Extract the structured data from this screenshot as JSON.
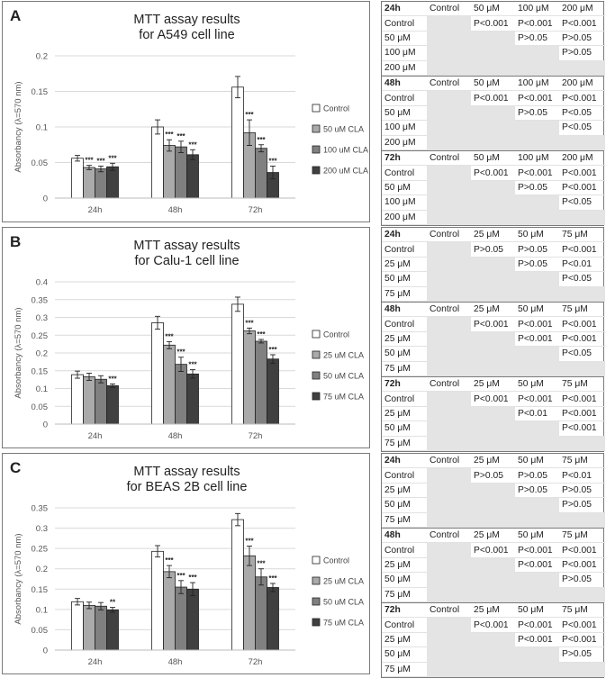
{
  "panels": [
    {
      "letter": "A",
      "title": [
        "MTT assay results",
        "for A549 cell line"
      ],
      "chart_data": {
        "type": "bar",
        "ylabel": "Absorbancy (λ=570 nm)",
        "ylim": [
          0,
          0.2
        ],
        "yticks": [
          "0",
          "0.05",
          "0.1",
          "0.15",
          "0.2"
        ],
        "ytick_values": [
          0,
          0.05,
          0.1,
          0.15,
          0.2
        ],
        "categories": [
          "24h",
          "48h",
          "72h"
        ],
        "colors": [
          "#ffffff",
          "#aaaaaa",
          "#808080",
          "#404040"
        ],
        "series": [
          {
            "name": "Control",
            "values": [
              0.056,
              0.1,
              0.156
            ],
            "errors": [
              0.004,
              0.01,
              0.015
            ],
            "sig": [
              "",
              "",
              ""
            ]
          },
          {
            "name": "50 uM CLA",
            "values": [
              0.043,
              0.074,
              0.092
            ],
            "errors": [
              0.003,
              0.008,
              0.018
            ],
            "sig": [
              "***",
              "***",
              "***"
            ]
          },
          {
            "name": "100 uM CLA",
            "values": [
              0.041,
              0.072,
              0.07
            ],
            "errors": [
              0.004,
              0.008,
              0.005
            ],
            "sig": [
              "***",
              "***",
              "***"
            ]
          },
          {
            "name": "200 uM CLA",
            "values": [
              0.044,
              0.061,
              0.036
            ],
            "errors": [
              0.005,
              0.007,
              0.009
            ],
            "sig": [
              "***",
              "***",
              "***"
            ]
          }
        ]
      }
    },
    {
      "letter": "B",
      "title": [
        "MTT assay results",
        "for Calu-1 cell line"
      ],
      "chart_data": {
        "type": "bar",
        "ylabel": "Absorbancy (λ=570 nm)",
        "ylim": [
          0,
          0.4
        ],
        "yticks": [
          "0",
          "0.05",
          "0.1",
          "0.15",
          "0.2",
          "0.25",
          "0.3",
          "0.35",
          "0.4"
        ],
        "ytick_values": [
          0,
          0.05,
          0.1,
          0.15,
          0.2,
          0.25,
          0.3,
          0.35,
          0.4
        ],
        "categories": [
          "24h",
          "48h",
          "72h"
        ],
        "colors": [
          "#ffffff",
          "#aaaaaa",
          "#808080",
          "#404040"
        ],
        "series": [
          {
            "name": "Control",
            "values": [
              0.139,
              0.285,
              0.337
            ],
            "errors": [
              0.01,
              0.018,
              0.02
            ],
            "sig": [
              "",
              "",
              ""
            ]
          },
          {
            "name": "25 uM CLA",
            "values": [
              0.133,
              0.222,
              0.262
            ],
            "errors": [
              0.01,
              0.01,
              0.008
            ],
            "sig": [
              "",
              "***",
              "***"
            ]
          },
          {
            "name": "50 uM CLA",
            "values": [
              0.126,
              0.168,
              0.233
            ],
            "errors": [
              0.01,
              0.02,
              0.005
            ],
            "sig": [
              "",
              "***",
              "***"
            ]
          },
          {
            "name": "75 uM CLA",
            "values": [
              0.108,
              0.141,
              0.183
            ],
            "errors": [
              0.005,
              0.012,
              0.012
            ],
            "sig": [
              "***",
              "***",
              "***"
            ]
          }
        ]
      }
    },
    {
      "letter": "C",
      "title": [
        "MTT assay results",
        "for BEAS 2B cell line"
      ],
      "chart_data": {
        "type": "bar",
        "ylabel": "Absorbancy (λ=570 nm)",
        "ylim": [
          0,
          0.35
        ],
        "yticks": [
          "0",
          "0.05",
          "0.1",
          "0.15",
          "0.2",
          "0.25",
          "0.3",
          "0.35"
        ],
        "ytick_values": [
          0,
          0.05,
          0.1,
          0.15,
          0.2,
          0.25,
          0.3,
          0.35
        ],
        "categories": [
          "24h",
          "48h",
          "72h"
        ],
        "colors": [
          "#ffffff",
          "#aaaaaa",
          "#808080",
          "#404040"
        ],
        "series": [
          {
            "name": "Control",
            "values": [
              0.119,
              0.243,
              0.321
            ],
            "errors": [
              0.008,
              0.014,
              0.015
            ],
            "sig": [
              "",
              "",
              ""
            ]
          },
          {
            "name": "25 uM CLA",
            "values": [
              0.11,
              0.193,
              0.232
            ],
            "errors": [
              0.008,
              0.015,
              0.024
            ],
            "sig": [
              "",
              "***",
              "***"
            ]
          },
          {
            "name": "50 uM CLA",
            "values": [
              0.108,
              0.155,
              0.18
            ],
            "errors": [
              0.009,
              0.016,
              0.02
            ],
            "sig": [
              "",
              "***",
              "***"
            ]
          },
          {
            "name": "75 uM CLA",
            "values": [
              0.099,
              0.15,
              0.154
            ],
            "errors": [
              0.006,
              0.016,
              0.01
            ],
            "sig": [
              "**",
              "***",
              "***"
            ]
          }
        ]
      }
    }
  ],
  "tables": [
    {
      "header": [
        "24h",
        "Control",
        "50 μM",
        "100 μM",
        "200 μM"
      ],
      "rows": [
        [
          "Control",
          "",
          "P<0.001",
          "P<0.001",
          "P<0.001"
        ],
        [
          "50 μM",
          "",
          "",
          "P>0.05",
          "P>0.05"
        ],
        [
          "100 μM",
          "",
          "",
          "",
          "P>0.05"
        ],
        [
          "200 μM",
          "",
          "",
          "",
          ""
        ]
      ]
    },
    {
      "header": [
        "48h",
        "Control",
        "50 μM",
        "100 μM",
        "200 μM"
      ],
      "rows": [
        [
          "Control",
          "",
          "P<0.001",
          "P<0.001",
          "P<0.001"
        ],
        [
          "50 μM",
          "",
          "",
          "P>0.05",
          "P<0.05"
        ],
        [
          "100 μM",
          "",
          "",
          "",
          "P<0.05"
        ],
        [
          "200 μM",
          "",
          "",
          "",
          ""
        ]
      ]
    },
    {
      "header": [
        "72h",
        "Control",
        "50 μM",
        "100 μM",
        "200 μM"
      ],
      "rows": [
        [
          "Control",
          "",
          "P<0.001",
          "P<0.001",
          "P<0.001"
        ],
        [
          "50 μM",
          "",
          "",
          "P>0.05",
          "P<0.001"
        ],
        [
          "100 μM",
          "",
          "",
          "",
          "P<0.05"
        ],
        [
          "200 μM",
          "",
          "",
          "",
          ""
        ]
      ]
    },
    {
      "header": [
        "24h",
        "Control",
        "25 μM",
        "50 μM",
        "75 μM"
      ],
      "rows": [
        [
          "Control",
          "",
          "P>0.05",
          "P>0.05",
          "P<0.001"
        ],
        [
          "25 μM",
          "",
          "",
          "P>0.05",
          "P<0.01"
        ],
        [
          "50 μM",
          "",
          "",
          "",
          "P<0.05"
        ],
        [
          "75 μM",
          "",
          "",
          "",
          ""
        ]
      ]
    },
    {
      "header": [
        "48h",
        "Control",
        "25 μM",
        "50 μM",
        "75 μM"
      ],
      "rows": [
        [
          "Control",
          "",
          "P<0.001",
          "P<0.001",
          "P<0.001"
        ],
        [
          "25 μM",
          "",
          "",
          "P<0.001",
          "P<0.001"
        ],
        [
          "50 μM",
          "",
          "",
          "",
          "P<0.05"
        ],
        [
          "75 μM",
          "",
          "",
          "",
          ""
        ]
      ]
    },
    {
      "header": [
        "72h",
        "Control",
        "25 μM",
        "50 μM",
        "75 μM"
      ],
      "rows": [
        [
          "Control",
          "",
          "P<0.001",
          "P<0.001",
          "P<0.001"
        ],
        [
          "25 μM",
          "",
          "",
          "P<0.01",
          "P<0.001"
        ],
        [
          "50 μM",
          "",
          "",
          "",
          "P<0.001"
        ],
        [
          "75 μM",
          "",
          "",
          "",
          ""
        ]
      ]
    },
    {
      "header": [
        "24h",
        "Control",
        "25 μM",
        "50 μM",
        "75 μM"
      ],
      "rows": [
        [
          "Control",
          "",
          "P>0.05",
          "P>0.05",
          "P<0.01"
        ],
        [
          "25 μM",
          "",
          "",
          "P>0.05",
          "P>0.05"
        ],
        [
          "50 μM",
          "",
          "",
          "",
          "P>0.05"
        ],
        [
          "75 μM",
          "",
          "",
          "",
          ""
        ]
      ]
    },
    {
      "header": [
        "48h",
        "Control",
        "25 μM",
        "50 μM",
        "75 μM"
      ],
      "rows": [
        [
          "Control",
          "",
          "P<0.001",
          "P<0.001",
          "P<0.001"
        ],
        [
          "25 μM",
          "",
          "",
          "P<0.001",
          "P<0.001"
        ],
        [
          "50 μM",
          "",
          "",
          "",
          "P>0.05"
        ],
        [
          "75 μM",
          "",
          "",
          "",
          ""
        ]
      ]
    },
    {
      "header": [
        "72h",
        "Control",
        "25 μM",
        "50 μM",
        "75 μM"
      ],
      "rows": [
        [
          "Control",
          "",
          "P<0.001",
          "P<0.001",
          "P<0.001"
        ],
        [
          "25 μM",
          "",
          "",
          "P<0.001",
          "P<0.001"
        ],
        [
          "50 μM",
          "",
          "",
          "",
          "P>0.05"
        ],
        [
          "75 μM",
          "",
          "",
          "",
          ""
        ]
      ]
    }
  ]
}
